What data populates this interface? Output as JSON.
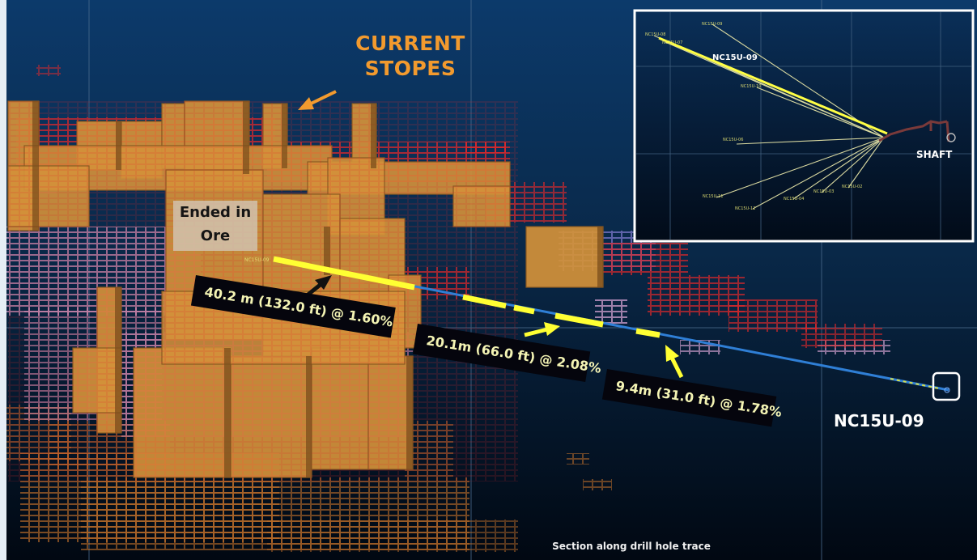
{
  "title": "CURRENT STOPES",
  "ended_label": "Ended in Ore",
  "intervals": [
    {
      "text": "40.2 m (132.0 ft) @ 1.60%"
    },
    {
      "text": "20.1m (66.0 ft) @ 2.08%"
    },
    {
      "text": "9.4m (31.0 ft) @ 1.78%"
    }
  ],
  "drill_hole": "NC15U-09",
  "collar_tag": "NC15U-09",
  "caption": "Section along drill hole trace",
  "inset": {
    "highlight_label": "NC15U-09",
    "shaft_label": "SHAFT",
    "hole_tags": [
      "NC15U-08",
      "NC15U-07",
      "NC15U-09",
      "NC15U-10",
      "NC15U-06",
      "NC15U-11",
      "NC15U-12",
      "NC15U-04",
      "NC15U-03",
      "NC15U-02"
    ]
  },
  "colors": {
    "stope": "#d4913a",
    "stope_shadow": "#8a5a22",
    "label_orange": "#f29a2e",
    "intercept": "#ffff33",
    "drill_trace": "#2f7fd6",
    "background_top": "#0c3a6b",
    "background_bottom": "#010812"
  }
}
